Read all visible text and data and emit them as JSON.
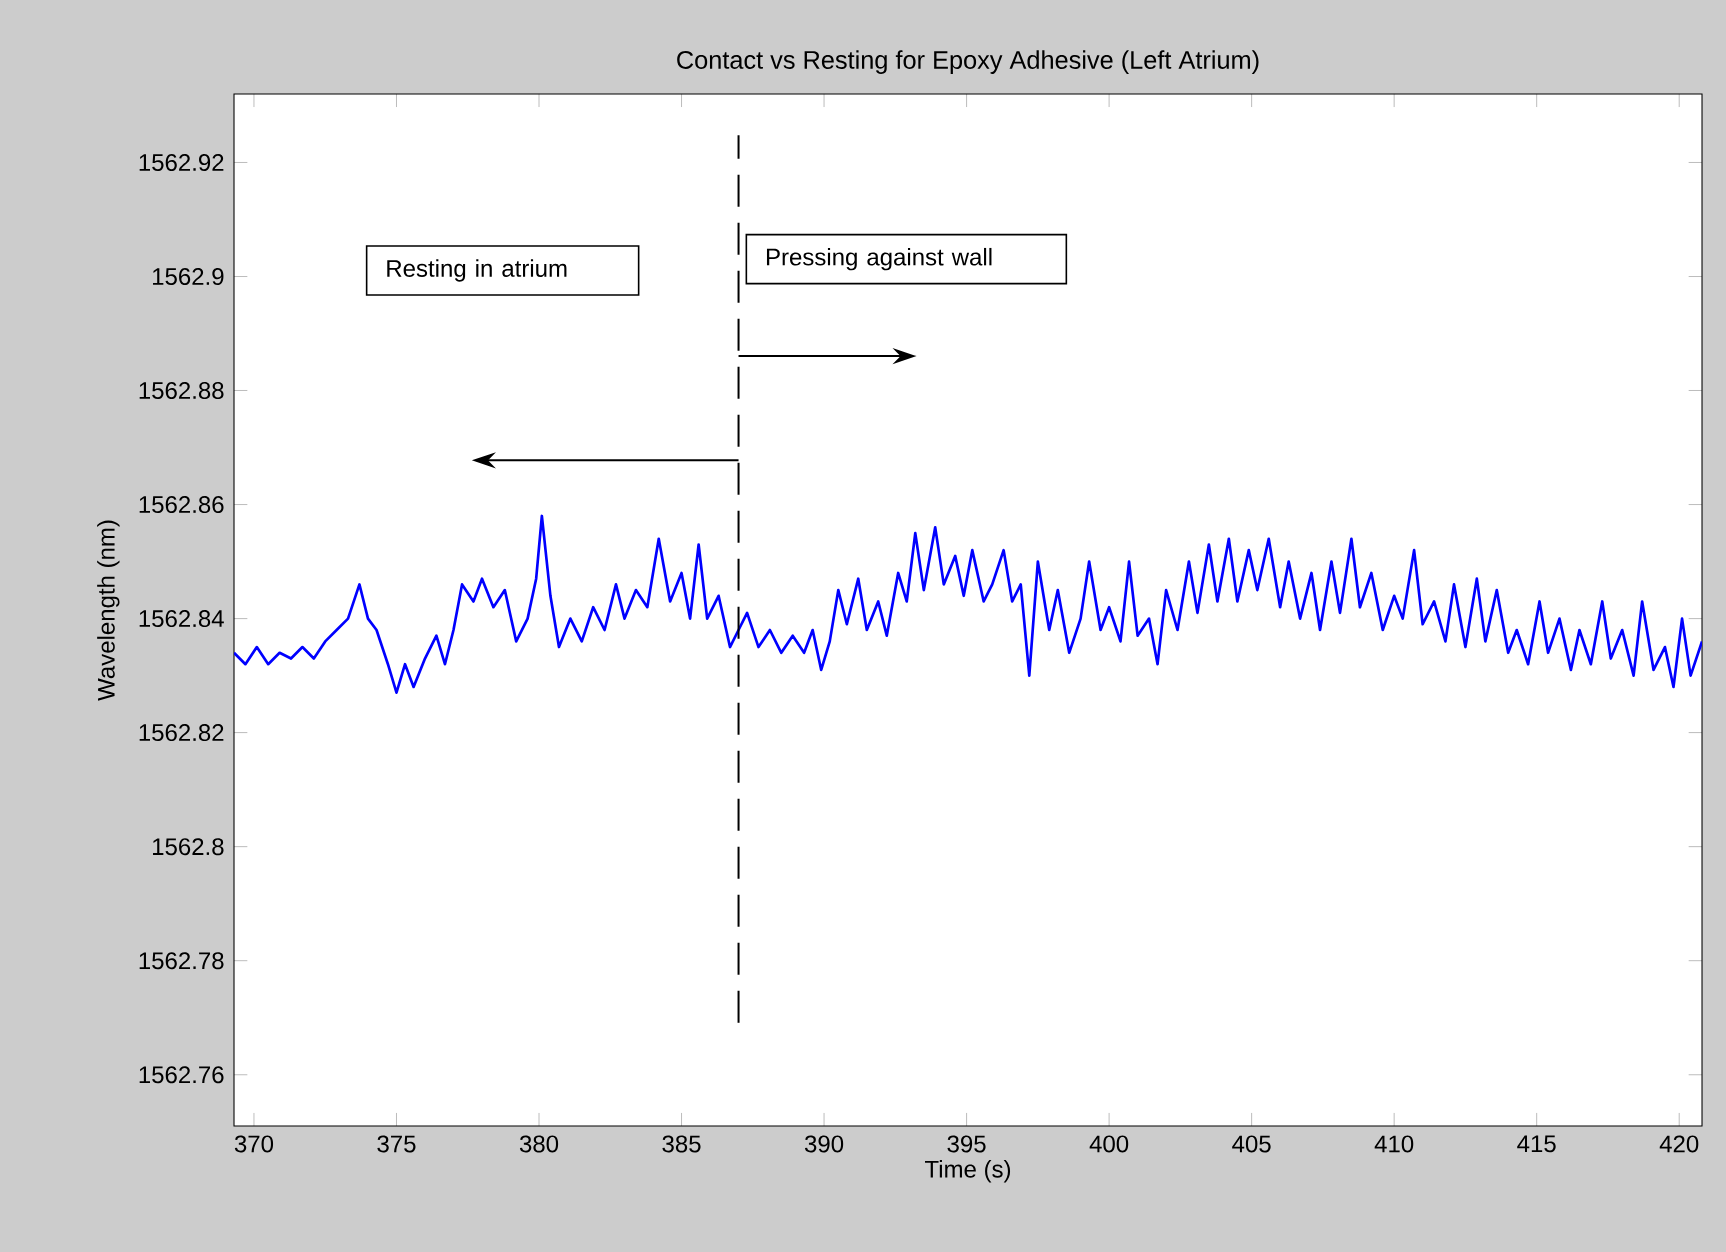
{
  "chart_data": {
    "type": "line",
    "title": "Contact vs Resting for Epoxy Adhesive (Left Atrium)",
    "xlabel": "Time (s)",
    "ylabel": "Wavelength (nm)",
    "xlim": [
      369.3,
      420.8
    ],
    "ylim": [
      1562.751,
      1562.932
    ],
    "xticks": [
      370,
      375,
      380,
      385,
      390,
      395,
      400,
      405,
      410,
      415,
      420
    ],
    "yticks": [
      1562.76,
      1562.78,
      1562.8,
      1562.82,
      1562.84,
      1562.86,
      1562.88,
      1562.9,
      1562.92
    ],
    "ref_lines": [
      {
        "axis": "x",
        "value": 387,
        "color": "#000000",
        "line_style": "dashed"
      }
    ],
    "annotations": [
      "Resting in atrium",
      "Pressing against wall"
    ],
    "series": [
      {
        "color": "#0000ff",
        "x": [
          369.3,
          369.7,
          370.1,
          370.5,
          370.9,
          371.3,
          371.7,
          372.1,
          372.5,
          372.9,
          373.3,
          373.7,
          374.0,
          374.3,
          374.7,
          375.0,
          375.3,
          375.6,
          376.0,
          376.4,
          376.7,
          377.0,
          377.3,
          377.7,
          378.0,
          378.4,
          378.8,
          379.2,
          379.6,
          379.9,
          380.1,
          380.4,
          380.7,
          381.1,
          381.5,
          381.9,
          382.3,
          382.7,
          383.0,
          383.4,
          383.8,
          384.2,
          384.6,
          385.0,
          385.3,
          385.6,
          385.9,
          386.3,
          386.7,
          387.0,
          387.3,
          387.7,
          388.1,
          388.5,
          388.9,
          389.3,
          389.6,
          389.9,
          390.2,
          390.5,
          390.8,
          391.2,
          391.5,
          391.9,
          392.2,
          392.6,
          392.9,
          393.2,
          393.5,
          393.9,
          394.2,
          394.6,
          394.9,
          395.2,
          395.6,
          395.9,
          396.3,
          396.6,
          396.9,
          397.2,
          397.5,
          397.9,
          398.2,
          398.6,
          399.0,
          399.3,
          399.7,
          400.0,
          400.4,
          400.7,
          401.0,
          401.4,
          401.7,
          402.0,
          402.4,
          402.8,
          403.1,
          403.5,
          403.8,
          404.2,
          404.5,
          404.9,
          405.2,
          405.6,
          406.0,
          406.3,
          406.7,
          407.1,
          407.4,
          407.8,
          408.1,
          408.5,
          408.8,
          409.2,
          409.6,
          410.0,
          410.3,
          410.7,
          411.0,
          411.4,
          411.8,
          412.1,
          412.5,
          412.9,
          413.2,
          413.6,
          414.0,
          414.3,
          414.7,
          415.1,
          415.4,
          415.8,
          416.2,
          416.5,
          416.9,
          417.3,
          417.6,
          418.0,
          418.4,
          418.7,
          419.1,
          419.5,
          419.8,
          420.1,
          420.4,
          420.8
        ],
        "values": [
          1562.834,
          1562.832,
          1562.835,
          1562.832,
          1562.834,
          1562.833,
          1562.835,
          1562.833,
          1562.836,
          1562.838,
          1562.84,
          1562.846,
          1562.84,
          1562.838,
          1562.832,
          1562.827,
          1562.832,
          1562.828,
          1562.833,
          1562.837,
          1562.832,
          1562.838,
          1562.846,
          1562.843,
          1562.847,
          1562.842,
          1562.845,
          1562.836,
          1562.84,
          1562.847,
          1562.858,
          1562.844,
          1562.835,
          1562.84,
          1562.836,
          1562.842,
          1562.838,
          1562.846,
          1562.84,
          1562.845,
          1562.842,
          1562.854,
          1562.843,
          1562.848,
          1562.84,
          1562.853,
          1562.84,
          1562.844,
          1562.835,
          1562.838,
          1562.841,
          1562.835,
          1562.838,
          1562.834,
          1562.837,
          1562.834,
          1562.838,
          1562.831,
          1562.836,
          1562.845,
          1562.839,
          1562.847,
          1562.838,
          1562.843,
          1562.837,
          1562.848,
          1562.843,
          1562.855,
          1562.845,
          1562.856,
          1562.846,
          1562.851,
          1562.844,
          1562.852,
          1562.843,
          1562.846,
          1562.852,
          1562.843,
          1562.846,
          1562.83,
          1562.85,
          1562.838,
          1562.845,
          1562.834,
          1562.84,
          1562.85,
          1562.838,
          1562.842,
          1562.836,
          1562.85,
          1562.837,
          1562.84,
          1562.832,
          1562.845,
          1562.838,
          1562.85,
          1562.841,
          1562.853,
          1562.843,
          1562.854,
          1562.843,
          1562.852,
          1562.845,
          1562.854,
          1562.842,
          1562.85,
          1562.84,
          1562.848,
          1562.838,
          1562.85,
          1562.841,
          1562.854,
          1562.842,
          1562.848,
          1562.838,
          1562.844,
          1562.84,
          1562.852,
          1562.839,
          1562.843,
          1562.836,
          1562.846,
          1562.835,
          1562.847,
          1562.836,
          1562.845,
          1562.834,
          1562.838,
          1562.832,
          1562.843,
          1562.834,
          1562.84,
          1562.831,
          1562.838,
          1562.832,
          1562.843,
          1562.833,
          1562.838,
          1562.83,
          1562.843,
          1562.831,
          1562.835,
          1562.828,
          1562.84,
          1562.83,
          1562.836
        ]
      }
    ]
  }
}
